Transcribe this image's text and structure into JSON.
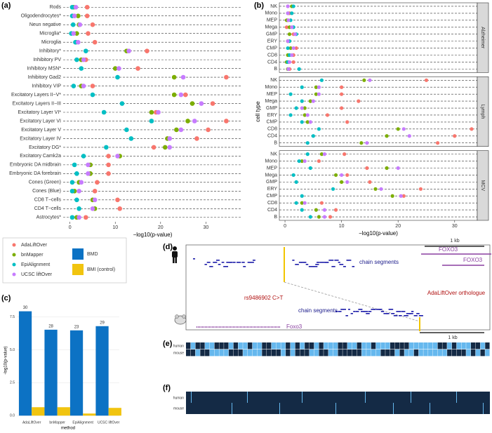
{
  "chart_data": [
    {
      "type": "dot",
      "panel_label": "(a)",
      "xlabel": "−log10(p-value)",
      "categories": [
        "Rods",
        "Oligodendrocytes*",
        "Neun negative",
        "Microglia*",
        "Microglia",
        "Inhibitory*",
        "Inhibitory PV",
        "Inhibitory MSN*",
        "Inhibitory Gad2",
        "Inhibitory  VIP",
        "Excitatory Layers II−V*",
        "Excitatory Layers II−III",
        "Excitatory Layer VI*",
        "Excitatory Layer VI",
        "Excitatory Layer V",
        "Excitatory Layer IV",
        "Excitatory DG*",
        "Excitatory Camk2a",
        "Embryonic DA midbrain",
        "Embryonic DA forebrain",
        "Cones (Green)",
        "Cones (Blue)",
        "CD8 T−cells",
        "CD4 T−cells",
        "Astrocytes*"
      ],
      "series": [
        {
          "name": "AdaLiftOver",
          "color": "#F8766D",
          "values": [
            3.8,
            3.8,
            5,
            4,
            5.5,
            17,
            3.5,
            15,
            34.5,
            5,
            25.5,
            31.5,
            19,
            34.5,
            30.5,
            28,
            18.5,
            8.5,
            8.5,
            8.5,
            6,
            5.5,
            10.5,
            11,
            3.5
          ]
        },
        {
          "name": "bnMapper",
          "color": "#7CAE00",
          "values": [
            0.8,
            1.8,
            2,
            1.5,
            1.3,
            12.5,
            2.5,
            10,
            23,
            2.5,
            23,
            27,
            18,
            26,
            23.5,
            21.5,
            21,
            11,
            4.5,
            4.5,
            2,
            1,
            5,
            5.5,
            1.5
          ]
        },
        {
          "name": "EpiAlignment",
          "color": "#00BFC4",
          "values": [
            0.5,
            0.5,
            0.7,
            0.3,
            1.2,
            3.5,
            1.5,
            2.5,
            10.5,
            0.8,
            5,
            11.5,
            7.5,
            18,
            12.5,
            13.5,
            8,
            3,
            1,
            1.5,
            0.5,
            0.5,
            1.5,
            2,
            0.5
          ]
        },
        {
          "name": "UCSC liftOver",
          "color": "#C77CFF",
          "values": [
            1.3,
            1,
            2.2,
            0.8,
            1.8,
            13,
            3,
            10.8,
            25,
            3,
            24.5,
            29,
            19.5,
            27.5,
            24.5,
            22,
            22,
            10.5,
            4,
            4,
            2.5,
            2,
            5.5,
            5,
            2
          ]
        }
      ],
      "xlim": [
        -1.5,
        38
      ],
      "xticks": [
        0,
        10,
        20,
        30
      ],
      "guides": "dashed"
    },
    {
      "type": "dot",
      "panel_label": "(b)",
      "xlabel": "−log10(p-value)",
      "ylabel": "cell type",
      "categories": [
        "NK",
        "Mono",
        "MEP",
        "Mega",
        "GMP",
        "ERY",
        "CMP",
        "CD8",
        "CD4",
        "B"
      ],
      "facets": [
        {
          "name": "Alzheimer",
          "series": [
            {
              "color": "#F8766D",
              "values": [
                0.5,
                0.8,
                0.5,
                0.3,
                1.5,
                0.5,
                2,
                1.5,
                1.5,
                0.8
              ]
            },
            {
              "color": "#7CAE00",
              "values": [
                1.2,
                0.5,
                0.3,
                0.8,
                0.8,
                0.5,
                1,
                0.5,
                0.3,
                0.5
              ]
            },
            {
              "color": "#00BFC4",
              "values": [
                1.5,
                1.2,
                1,
                1.5,
                2,
                0.8,
                0.5,
                0.8,
                0.5,
                2.5
              ]
            },
            {
              "color": "#C77CFF",
              "values": [
                0.5,
                0.5,
                0.6,
                1.2,
                1.8,
                0.5,
                1.5,
                1.2,
                0.8,
                0.6
              ]
            }
          ]
        },
        {
          "name": "Lymph",
          "series": [
            {
              "color": "#F8766D",
              "values": [
                25,
                10,
                10,
                13,
                10,
                7.5,
                11,
                33,
                30,
                27
              ]
            },
            {
              "color": "#7CAE00",
              "values": [
                14,
                5.5,
                5.5,
                4.5,
                3.5,
                3.5,
                4,
                20,
                18,
                13.5
              ]
            },
            {
              "color": "#00BFC4",
              "values": [
                6.5,
                3,
                1,
                3,
                2,
                1,
                3,
                6,
                5,
                4
              ]
            },
            {
              "color": "#C77CFF",
              "values": [
                15,
                6,
                6,
                5,
                3,
                4,
                4.5,
                21,
                22,
                14.5
              ]
            }
          ]
        },
        {
          "name": "MCV",
          "series": [
            {
              "color": "#F8766D",
              "values": [
                10.5,
                6,
                14.5,
                11,
                15,
                24,
                21,
                6.5,
                9,
                8
              ]
            },
            {
              "color": "#7CAE00",
              "values": [
                6.5,
                3,
                18,
                9,
                10,
                16,
                19,
                3,
                5.5,
                6
              ]
            },
            {
              "color": "#00BFC4",
              "values": [
                4,
                2.5,
                4.5,
                1.5,
                2,
                8.5,
                3,
                2,
                3,
                4.5
              ]
            },
            {
              "color": "#C77CFF",
              "values": [
                7,
                3.5,
                20,
                10,
                11,
                17,
                20.5,
                3.5,
                7,
                7
              ]
            }
          ]
        }
      ],
      "xlim": [
        -1,
        34
      ],
      "xticks": [
        0,
        10,
        20,
        30
      ],
      "guides": "dashed"
    },
    {
      "type": "bar",
      "panel_label": "(c)",
      "xlabel": "method",
      "ylabel": "-log10(p-value)",
      "categories": [
        "AdaLiftOver",
        "bnMapper",
        "EpiAlignment",
        "UCSC liftOver"
      ],
      "series": [
        {
          "name": "BMD",
          "color": "#0C72C4",
          "values": [
            7.93,
            6.53,
            6.48,
            6.8
          ]
        },
        {
          "name": "BMI (control)",
          "color": "#F1C40F",
          "values": [
            0.64,
            0.64,
            0.16,
            0.59
          ]
        }
      ],
      "annotations": [
        30,
        28,
        23,
        29
      ],
      "ylim": [
        -0.2,
        8.6
      ],
      "yticks": [
        {
          "value": 0,
          "label": "0.0"
        },
        {
          "value": 2.5,
          "label": "2.5"
        },
        {
          "value": 5,
          "label": "5.0"
        },
        {
          "value": 7.5,
          "label": "7.5"
        }
      ],
      "grid": true
    }
  ],
  "diagram": {
    "d": {
      "panel_label": "(d)",
      "human_gene": "FOXO3",
      "human_gene_2": "FOXO3",
      "scale_top": "1 kb",
      "human_chain": "chain segments",
      "snp": "rs9486902 C>T",
      "orthologue": "AdaLiftOver orthologue",
      "mouse_chain": "chain segments",
      "mouse_gene": "Foxo3",
      "scale_bottom": "1 kb"
    },
    "e": {
      "panel_label": "(e)",
      "rows": [
        "human",
        "mouse"
      ]
    },
    "f": {
      "panel_label": "(f)",
      "rows": [
        "human",
        "mouse"
      ]
    }
  }
}
